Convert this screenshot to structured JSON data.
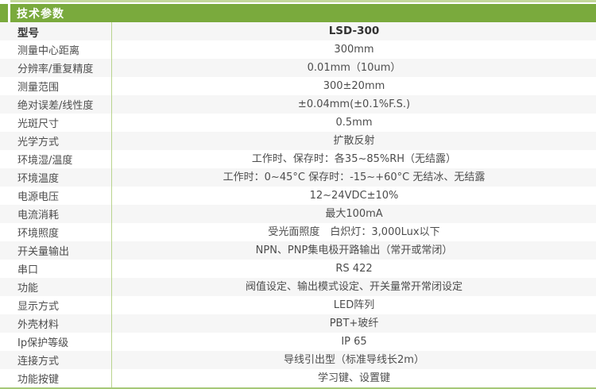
{
  "header": {
    "title": "技术参数"
  },
  "colors": {
    "accent_green": "#7aaa3d",
    "pale_green_line": "#c3d89b",
    "divider_green": "#b9d48e",
    "bottom_line_green": "#a6c878",
    "row_alt_gray": "#f6f6f6",
    "text": "#4d4d4d"
  },
  "table": {
    "rows": [
      {
        "label": "型号",
        "value": "LSD-300"
      },
      {
        "label": "测量中心距离",
        "value": "300mm"
      },
      {
        "label": "分辨率/重复精度",
        "value": "0.01mm（10um）"
      },
      {
        "label": "测量范围",
        "value": "300±20mm"
      },
      {
        "label": "绝对误差/线性度",
        "value": "±0.04mm(±0.1%F.S.)"
      },
      {
        "label": "光斑尺寸",
        "value": "0.5mm"
      },
      {
        "label": "光学方式",
        "value": "扩散反射"
      },
      {
        "label": "环境湿/温度",
        "value": "工作时、保存时：各35~85%RH（无结露）"
      },
      {
        "label": "环境温度",
        "value": "工作时：0~45°C  保存时：-15~+60°C 无结冰、无结露"
      },
      {
        "label": "电源电压",
        "value": "12~24VDC±10%"
      },
      {
        "label": "电流消耗",
        "value": "最大100mA"
      },
      {
        "label": "环境照度",
        "value": "受光面照度　白炽灯：3,000Lux以下"
      },
      {
        "label": "开关量输出",
        "value": "NPN、PNP集电极开路输出（常开或常闭）"
      },
      {
        "label": "串口",
        "value": "RS 422"
      },
      {
        "label": "功能",
        "value": "阀值设定、输出模式设定、开关量常开常闭设定"
      },
      {
        "label": "显示方式",
        "value": "LED阵列"
      },
      {
        "label": "外壳材料",
        "value": "PBT+玻纤"
      },
      {
        "label": "Ip保护等级",
        "value": "IP 65"
      },
      {
        "label": "连接方式",
        "value": "导线引出型（标准导线长2m）"
      },
      {
        "label": "功能按键",
        "value": "学习键、设置键"
      }
    ]
  }
}
